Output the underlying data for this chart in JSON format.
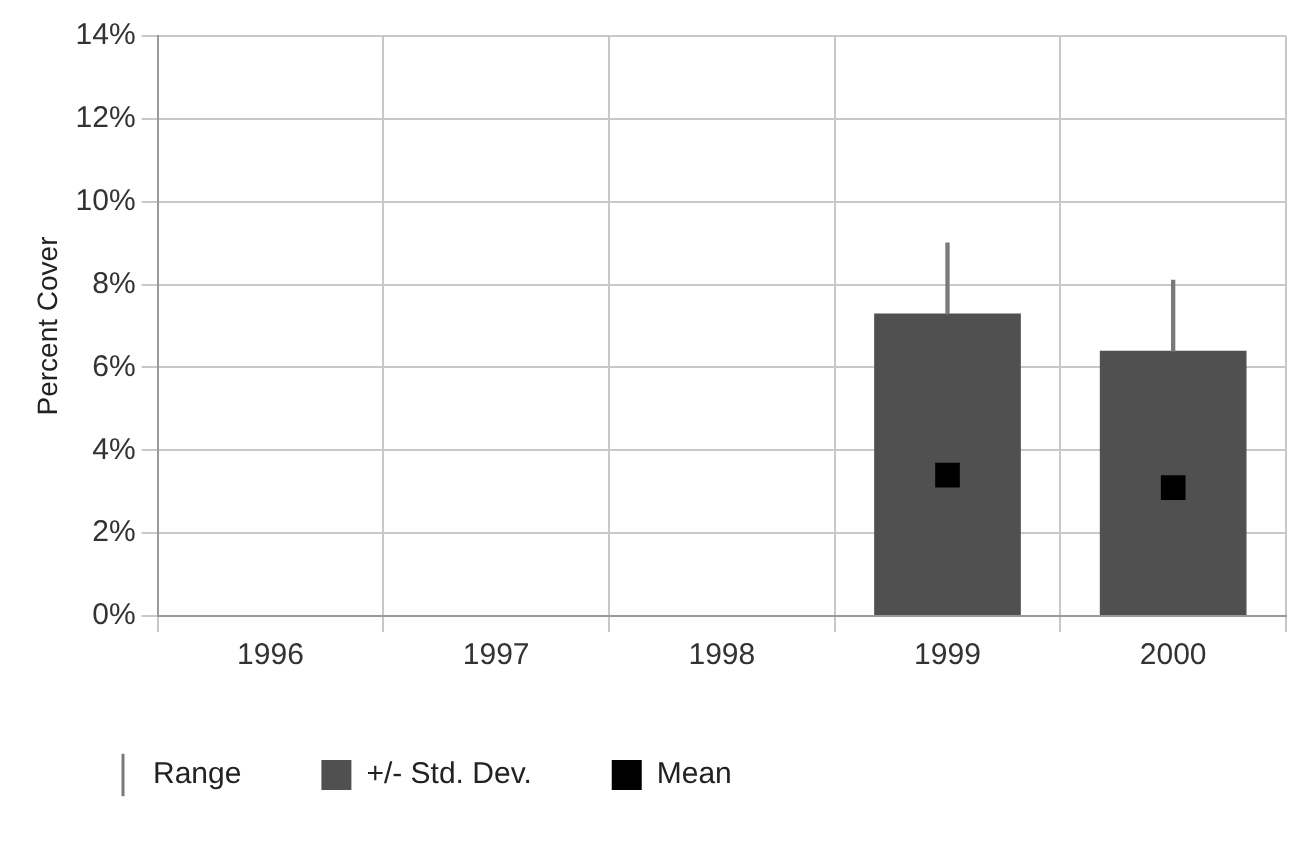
{
  "chart_data": {
    "type": "bar",
    "ylabel": "Percent Cover",
    "categories": [
      "1996",
      "1997",
      "1998",
      "1999",
      "2000"
    ],
    "series": [
      {
        "name": "Range",
        "color": "#7a7a7a",
        "base": [
          null,
          null,
          null,
          7.3,
          6.4
        ],
        "values": [
          null,
          null,
          null,
          1.7,
          1.7
        ]
      },
      {
        "name": "+/- Std. Dev.",
        "color": "#505050",
        "values": [
          null,
          null,
          null,
          7.3,
          6.4
        ]
      },
      {
        "name": "Mean",
        "type": "scatter",
        "color": "#000000",
        "marker": "square",
        "values": [
          null,
          null,
          null,
          3.4,
          3.1
        ]
      }
    ],
    "ylim": [
      0,
      14
    ],
    "yticks": [
      {
        "value": 0,
        "label": "0%"
      },
      {
        "value": 2,
        "label": "2%"
      },
      {
        "value": 4,
        "label": "4%"
      },
      {
        "value": 6,
        "label": "6%"
      },
      {
        "value": 8,
        "label": "8%"
      },
      {
        "value": 10,
        "label": "10%"
      },
      {
        "value": 12,
        "label": "12%"
      },
      {
        "value": 14,
        "label": "14%"
      }
    ],
    "grid": true,
    "legend": "bottom"
  }
}
